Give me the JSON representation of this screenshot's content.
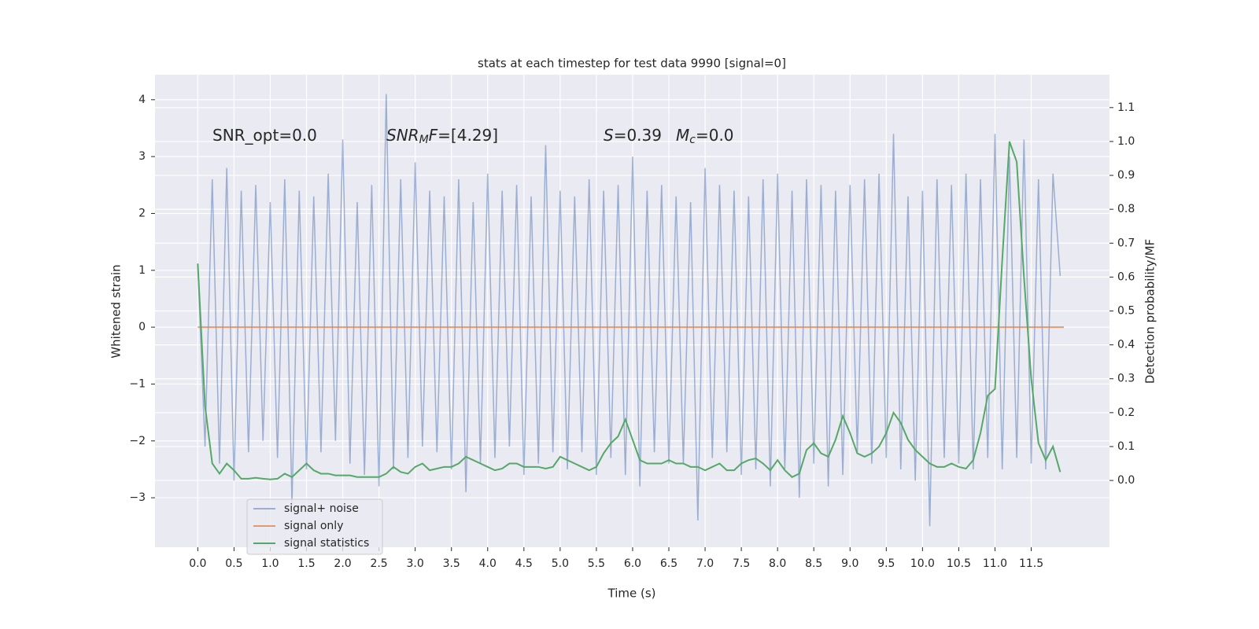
{
  "chart_data": {
    "type": "line",
    "title": "stats at each timestep for test data 9990 [signal=0]",
    "xlabel": "Time (s)",
    "ylabel": "Whitened strain",
    "y2label": "Detection probability/MF",
    "background": "#eaeaf2",
    "grid": true,
    "legend": "lower left",
    "xlim": [
      -0.59,
      12.58
    ],
    "ylim": [
      -3.87,
      4.44
    ],
    "y2lim": [
      -0.197,
      1.197
    ],
    "xticks": [
      {
        "value": 0,
        "label": "0.0"
      },
      0.5,
      {
        "value": 1,
        "label": "1.0"
      },
      1.5,
      {
        "value": 2,
        "label": "2.0"
      },
      2.5,
      {
        "value": 3,
        "label": "3.0"
      },
      3.5,
      {
        "value": 4,
        "label": "4.0"
      },
      4.5,
      {
        "value": 5,
        "label": "5.0"
      },
      5.5,
      {
        "value": 6,
        "label": "6.0"
      },
      6.5,
      {
        "value": 7,
        "label": "7.0"
      },
      7.5,
      {
        "value": 8,
        "label": "8.0"
      },
      8.5,
      {
        "value": 9,
        "label": "9.0"
      },
      9.5,
      {
        "value": 10,
        "label": "10.0"
      },
      10.5,
      {
        "value": 11,
        "label": "11.0"
      },
      11.5
    ],
    "yticks": [
      {
        "value": -3,
        "label": "−3"
      },
      {
        "value": -2,
        "label": "−2"
      },
      {
        "value": -1,
        "label": "−1"
      },
      0,
      1,
      2,
      3,
      4
    ],
    "y2ticks": [
      {
        "value": 0,
        "label": "0.0"
      },
      0.1,
      0.2,
      0.3,
      0.4,
      0.5,
      0.6,
      0.7,
      0.8,
      0.9,
      {
        "value": 1,
        "label": "1.0"
      },
      1.1
    ],
    "annotations": [
      {
        "parts": [
          {
            "text": "SNR_opt=0.0"
          }
        ]
      },
      {
        "parts": [
          {
            "text": "SNR",
            "italic": true
          },
          {
            "text": "M",
            "italic": true,
            "sub": true
          },
          {
            "text": "F",
            "italic": true
          },
          {
            "text": "=[4.29]"
          }
        ]
      },
      {
        "parts": [
          {
            "text": "S",
            "italic": true
          },
          {
            "text": "=0.39"
          }
        ]
      },
      {
        "parts": [
          {
            "text": "M",
            "italic": true
          },
          {
            "text": "c",
            "italic": true,
            "sub": true
          },
          {
            "text": "=0.0"
          }
        ]
      }
    ],
    "x": [
      0,
      0.1,
      0.2,
      0.3,
      0.4,
      0.5,
      0.6,
      0.7,
      0.8,
      0.9,
      1,
      1.1,
      1.2,
      1.3,
      1.4,
      1.5,
      1.6,
      1.7,
      1.8,
      1.9,
      2,
      2.1,
      2.2,
      2.3,
      2.4,
      2.5,
      2.6,
      2.7,
      2.8,
      2.9,
      3,
      3.1,
      3.2,
      3.3,
      3.4,
      3.5,
      3.6,
      3.7,
      3.8,
      3.9,
      4,
      4.1,
      4.2,
      4.3,
      4.4,
      4.5,
      4.6,
      4.7,
      4.8,
      4.9,
      5,
      5.1,
      5.2,
      5.3,
      5.4,
      5.5,
      5.6,
      5.7,
      5.8,
      5.9,
      6,
      6.1,
      6.2,
      6.3,
      6.4,
      6.5,
      6.6,
      6.7,
      6.8,
      6.9,
      7,
      7.1,
      7.2,
      7.3,
      7.4,
      7.5,
      7.6,
      7.7,
      7.8,
      7.9,
      8,
      8.1,
      8.2,
      8.3,
      8.4,
      8.5,
      8.6,
      8.7,
      8.8,
      8.9,
      9,
      9.1,
      9.2,
      9.3,
      9.4,
      9.5,
      9.6,
      9.7,
      9.8,
      9.9,
      10,
      10.1,
      10.2,
      10.3,
      10.4,
      10.5,
      10.6,
      10.7,
      10.8,
      10.9,
      11,
      11.1,
      11.2,
      11.3,
      11.4,
      11.5,
      11.6,
      11.7,
      11.8,
      11.9
    ],
    "series": [
      {
        "name": "signal+ noise",
        "color": "#4c72b0",
        "opacity": 0.5,
        "values": [
          1.1,
          -2.1,
          2.6,
          -2.4,
          2.8,
          -2.7,
          2.4,
          -2.2,
          2.5,
          -2.0,
          2.2,
          -2.3,
          2.6,
          -3.1,
          2.4,
          -2.5,
          2.3,
          -2.2,
          2.7,
          -2.0,
          3.3,
          -2.4,
          2.2,
          -2.6,
          2.5,
          -2.8,
          4.1,
          -2.5,
          2.6,
          -2.3,
          2.9,
          -2.1,
          2.4,
          -2.2,
          2.3,
          -2.5,
          2.6,
          -2.9,
          2.2,
          -2.4,
          2.7,
          -2.3,
          2.4,
          -2.1,
          2.5,
          -2.6,
          2.3,
          -2.4,
          3.2,
          -2.2,
          2.4,
          -2.5,
          2.3,
          -2.2,
          2.6,
          -2.6,
          2.4,
          -2.3,
          2.5,
          -2.6,
          3.0,
          -2.8,
          2.4,
          -2.2,
          2.5,
          -2.4,
          2.3,
          -2.4,
          2.2,
          -3.4,
          2.8,
          -2.3,
          2.5,
          -2.2,
          2.4,
          -2.6,
          2.3,
          -2.5,
          2.6,
          -2.8,
          2.7,
          -2.5,
          2.4,
          -3.0,
          2.6,
          -2.4,
          2.5,
          -2.8,
          2.4,
          -2.6,
          2.5,
          -2.2,
          2.6,
          -2.4,
          2.7,
          -2.3,
          3.4,
          -2.5,
          2.3,
          -2.7,
          2.4,
          -3.5,
          2.6,
          -2.3,
          2.5,
          -2.4,
          2.7,
          -2.5,
          2.6,
          -2.3,
          3.4,
          -2.5,
          3.0,
          -2.3,
          3.3,
          -2.4,
          2.6,
          -2.5,
          2.7,
          0.9
        ]
      },
      {
        "name": "signal only",
        "color": "#dd8452",
        "opacity": 0.8,
        "x": [
          0,
          11.95
        ],
        "values": [
          0,
          0
        ]
      },
      {
        "name": "signal statistics",
        "color": "#55a868",
        "opacity": 1,
        "axis": "y2",
        "values": [
          0.64,
          0.22,
          0.05,
          0.02,
          0.05,
          0.03,
          0.005,
          0.005,
          0.008,
          0.005,
          0.003,
          0.005,
          0.02,
          0.01,
          0.03,
          0.05,
          0.03,
          0.02,
          0.02,
          0.015,
          0.015,
          0.015,
          0.01,
          0.01,
          0.01,
          0.01,
          0.02,
          0.04,
          0.025,
          0.02,
          0.04,
          0.05,
          0.03,
          0.035,
          0.04,
          0.04,
          0.05,
          0.07,
          0.06,
          0.05,
          0.04,
          0.03,
          0.035,
          0.05,
          0.05,
          0.04,
          0.04,
          0.04,
          0.035,
          0.04,
          0.07,
          0.06,
          0.05,
          0.04,
          0.03,
          0.04,
          0.08,
          0.11,
          0.13,
          0.18,
          0.12,
          0.06,
          0.05,
          0.05,
          0.05,
          0.06,
          0.05,
          0.05,
          0.04,
          0.04,
          0.03,
          0.04,
          0.05,
          0.03,
          0.03,
          0.05,
          0.06,
          0.065,
          0.05,
          0.03,
          0.06,
          0.03,
          0.01,
          0.02,
          0.09,
          0.11,
          0.08,
          0.07,
          0.12,
          0.19,
          0.14,
          0.08,
          0.07,
          0.08,
          0.1,
          0.14,
          0.2,
          0.17,
          0.12,
          0.09,
          0.07,
          0.05,
          0.04,
          0.04,
          0.05,
          0.04,
          0.035,
          0.06,
          0.14,
          0.25,
          0.27,
          0.65,
          1.0,
          0.94,
          0.6,
          0.3,
          0.11,
          0.06,
          0.1,
          0.025
        ]
      }
    ]
  }
}
